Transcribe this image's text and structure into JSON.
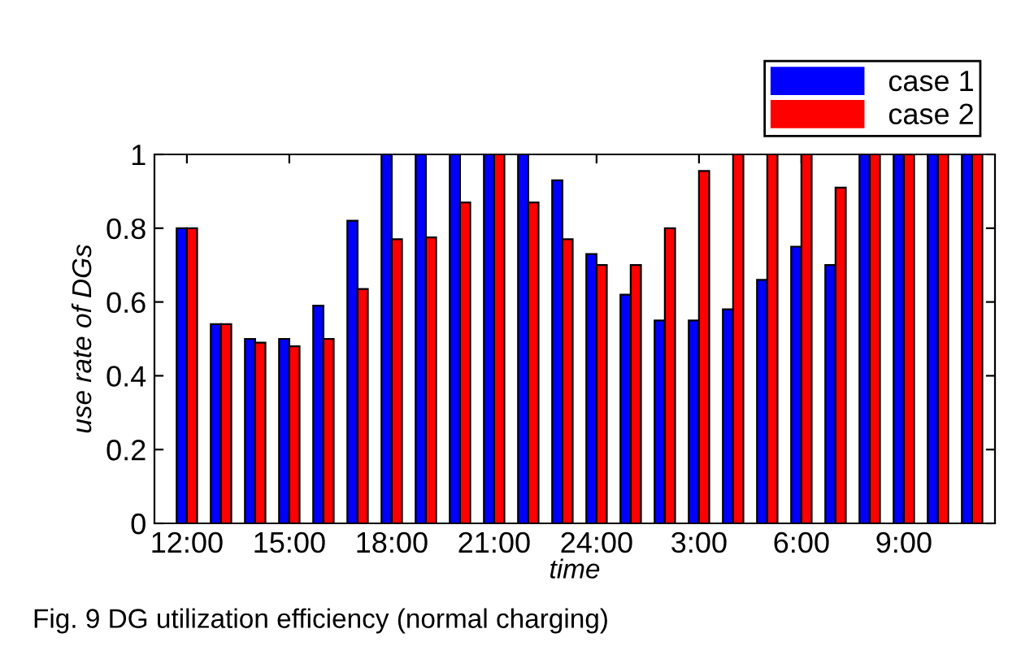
{
  "chart_data": {
    "type": "bar",
    "xlabel": "time",
    "ylabel": "use rate of DGs",
    "categories": [
      "12:00",
      null,
      null,
      "15:00",
      null,
      null,
      "18:00",
      null,
      null,
      "21:00",
      null,
      null,
      "24:00",
      null,
      null,
      "3:00",
      null,
      null,
      "6:00",
      null,
      null,
      "9:00",
      null,
      null
    ],
    "series": [
      {
        "name": "case 1",
        "color": "#0000ff",
        "values": [
          0.8,
          0.54,
          0.5,
          0.5,
          0.59,
          0.82,
          1,
          1,
          1,
          1,
          1,
          0.93,
          0.73,
          0.62,
          0.55,
          0.55,
          0.58,
          0.66,
          0.75,
          0.7,
          1,
          1,
          1,
          1
        ]
      },
      {
        "name": "case 2",
        "color": "#ff0000",
        "values": [
          0.8,
          0.54,
          0.49,
          0.48,
          0.5,
          0.635,
          0.77,
          0.775,
          0.87,
          1,
          0.87,
          0.77,
          0.7,
          0.7,
          0.8,
          0.955,
          1,
          1,
          1,
          0.91,
          1,
          1,
          1,
          1
        ]
      }
    ],
    "ylim": [
      0,
      1
    ],
    "yticks": [
      0,
      0.2,
      0.4,
      0.6,
      0.8,
      1
    ],
    "grid": false,
    "legend": "top right",
    "annotations": [
      "Fig. 9 DG utilization efficiency (normal charging)"
    ]
  }
}
